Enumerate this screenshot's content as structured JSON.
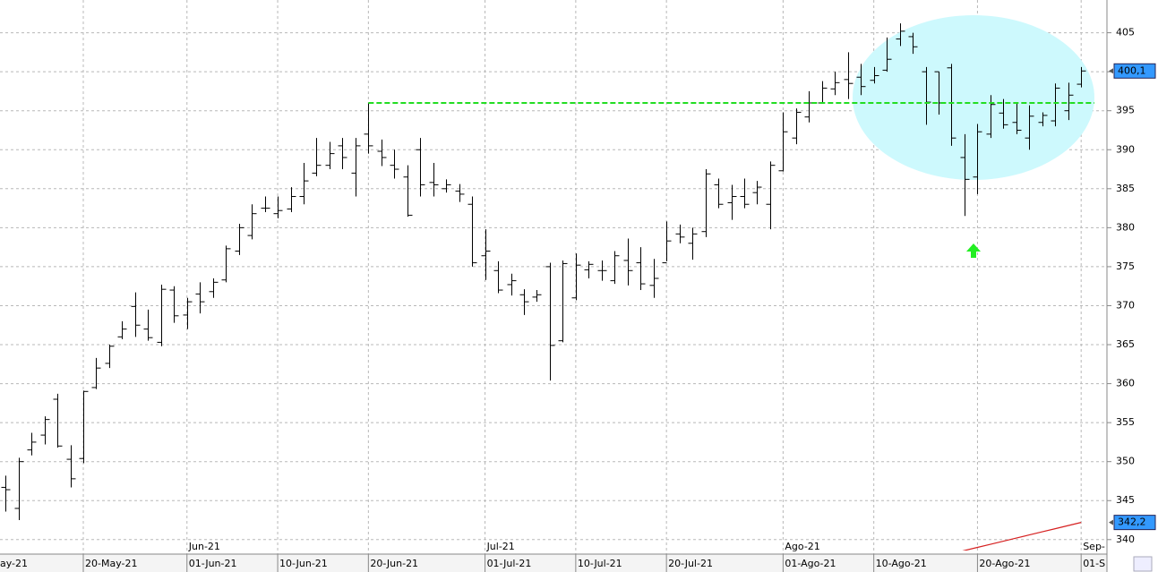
{
  "chart_data": {
    "type": "ohlc",
    "categories": [
      "ay-21",
      null,
      null,
      null,
      null,
      null,
      null,
      "20-May-21",
      null,
      null,
      null,
      null,
      null,
      null,
      null,
      "01-Jun-21",
      null,
      null,
      null,
      null,
      null,
      null,
      "10-Jun-21",
      null,
      null,
      null,
      null,
      null,
      null,
      "20-Jun-21",
      null,
      null,
      null,
      null,
      null,
      null,
      null,
      null,
      "01-Jul-21",
      null,
      null,
      null,
      null,
      null,
      null,
      "10-Jul-21",
      null,
      null,
      null,
      null,
      null,
      null,
      "20-Jul-21",
      null,
      null,
      null,
      null,
      null,
      null,
      null,
      null,
      "01-Ago-21",
      null,
      null,
      null,
      null,
      null,
      null,
      "10-Ago-21",
      null,
      null,
      null,
      null,
      null,
      null,
      null,
      "20-Ago-21",
      null,
      null,
      null,
      null,
      null,
      null,
      null,
      "01-S"
    ],
    "month_labels": [
      null,
      null,
      null,
      null,
      null,
      null,
      null,
      null,
      null,
      null,
      null,
      null,
      null,
      null,
      null,
      "Jun-21",
      null,
      null,
      null,
      null,
      null,
      null,
      null,
      null,
      null,
      null,
      null,
      null,
      null,
      null,
      null,
      null,
      null,
      null,
      null,
      null,
      null,
      null,
      "Jul-21",
      null,
      null,
      null,
      null,
      null,
      null,
      null,
      null,
      null,
      null,
      null,
      null,
      null,
      null,
      null,
      null,
      null,
      null,
      null,
      null,
      null,
      null,
      "Ago-21",
      null,
      null,
      null,
      null,
      null,
      null,
      null,
      null,
      null,
      null,
      null,
      null,
      null,
      null,
      null,
      null,
      null,
      null,
      null,
      null,
      null,
      null,
      "Sep-"
    ],
    "open": [
      null,
      346.7,
      344,
      351.5,
      353.4,
      358,
      350.3,
      350.4,
      359.5,
      362.6,
      366,
      369.9,
      367,
      365.3,
      372,
      368.8,
      371.5,
      371.8,
      373.3,
      377,
      379,
      382.5,
      381.8,
      382.4,
      384,
      387,
      388,
      390.5,
      387,
      392,
      389.8,
      388,
      386.5,
      390,
      385.8,
      385,
      384.7,
      383,
      376.4,
      374.5,
      372.7,
      371.4,
      371.1,
      375,
      365.5,
      371,
      374.6,
      374.5,
      373.2,
      375.8,
      375.5,
      372.6,
      375.5,
      379.2,
      378,
      379.5,
      385.5,
      383.2,
      384,
      384.5,
      383,
      387.3,
      391.5,
      394.2,
      396,
      397.8,
      399,
      399.3,
      398.9,
      400.2,
      404.2,
      404.5,
      400,
      400,
      400.5,
      389,
      386.5,
      392,
      394.7,
      393.5,
      391.5,
      393.5,
      393.7,
      395,
      398.4
    ],
    "high": [
      null,
      348.2,
      350.5,
      353.7,
      355.8,
      358.7,
      352.1,
      359.1,
      363.3,
      365,
      368,
      371.7,
      369.5,
      372.7,
      372.5,
      371,
      373,
      373.5,
      377.7,
      380.5,
      383,
      384,
      384,
      385.2,
      388.3,
      391.5,
      391,
      391.5,
      391.5,
      396,
      391.3,
      390,
      388,
      391.5,
      388.3,
      386.2,
      385.6,
      384,
      379.8,
      375.7,
      374.1,
      372.1,
      372,
      375.5,
      375.8,
      376.7,
      375.7,
      375.8,
      377,
      378.6,
      377.5,
      376,
      380.8,
      380.4,
      380,
      387.5,
      386.3,
      385.5,
      386.3,
      386,
      388.5,
      394.8,
      395.3,
      397.5,
      398.8,
      400,
      402.5,
      401,
      400.6,
      404.4,
      406.2,
      405,
      400.6,
      400,
      401,
      392,
      393.3,
      397,
      396.5,
      396,
      395.7,
      394.8,
      398.5,
      398.6,
      400.6
    ],
    "low": [
      null,
      343.6,
      342.5,
      350.8,
      352.2,
      351.8,
      346.7,
      349.8,
      359.3,
      362,
      365.7,
      366,
      365.5,
      364.8,
      367.8,
      367,
      369,
      371,
      373,
      376.5,
      378.5,
      382,
      381.2,
      382,
      383,
      386.6,
      387.5,
      387.5,
      384,
      389.5,
      387.9,
      386.3,
      381.4,
      384,
      384,
      384.5,
      383.3,
      375,
      373.3,
      371.6,
      371.3,
      368.8,
      370.5,
      360.4,
      365.3,
      370.7,
      373.5,
      373.2,
      372.8,
      372.6,
      372,
      371,
      375.7,
      378,
      375.9,
      378.8,
      382.5,
      381,
      382.5,
      383,
      379.8,
      387.2,
      390.7,
      393.5,
      395.9,
      397,
      396.5,
      397,
      398.5,
      400,
      403.3,
      402.3,
      393.2,
      394.5,
      390.5,
      381.5,
      384.3,
      391.5,
      392.7,
      392,
      390,
      393,
      393,
      393.8,
      398
    ],
    "close": [
      null,
      346.4,
      350,
      352.5,
      355.4,
      352,
      347.8,
      359,
      362,
      364.8,
      367,
      367.5,
      365.9,
      372.1,
      368.7,
      370.5,
      370.5,
      373,
      377.3,
      380,
      381.8,
      382.5,
      382.2,
      384,
      386,
      388,
      389.5,
      389,
      390.5,
      390.5,
      389,
      387.5,
      381.6,
      385.5,
      385.5,
      385.5,
      384.3,
      375.5,
      377,
      372,
      373.2,
      370.5,
      371.4,
      364.9,
      375.4,
      375.2,
      375.3,
      374.5,
      376.4,
      374.5,
      372.8,
      373.5,
      378.3,
      378.8,
      379.2,
      386.9,
      383,
      384,
      383,
      385.2,
      388,
      392.3,
      394.8,
      396,
      397.9,
      398.6,
      398.5,
      398.1,
      399.5,
      401.6,
      405.2,
      403.2,
      396.1,
      396,
      391.5,
      386.2,
      392.3,
      395.8,
      393.2,
      392.5,
      394.3,
      394.4,
      397.9,
      397,
      400.1
    ],
    "bar_color": "#000000",
    "series": [
      {
        "color": "#d62020",
        "values": [
          null,
          null,
          null,
          null,
          null,
          null,
          null,
          null,
          null,
          null,
          null,
          null,
          null,
          null,
          null,
          null,
          null,
          null,
          null,
          null,
          null,
          null,
          null,
          null,
          null,
          null,
          null,
          null,
          null,
          null,
          null,
          null,
          null,
          null,
          null,
          null,
          null,
          null,
          null,
          null,
          null,
          null,
          null,
          null,
          null,
          null,
          null,
          null,
          null,
          null,
          null,
          null,
          null,
          null,
          null,
          null,
          null,
          null,
          null,
          null,
          null,
          null,
          null,
          null,
          null,
          null,
          null,
          null,
          null,
          null,
          null,
          null,
          null,
          null,
          338.2,
          338.6,
          339,
          339.4,
          339.8,
          340.2,
          340.6,
          341,
          341.4,
          341.8,
          342.2
        ]
      }
    ],
    "hline": {
      "value": 396,
      "start": 29,
      "color": "#22dd22"
    },
    "last_value_labels": [
      {
        "value": 400.1,
        "label": "400,1",
        "color": "#3399ff"
      },
      {
        "value": 342.2,
        "label": "342,2",
        "color": "#3399ff"
      }
    ],
    "ylim": [
      338.6,
      409.2
    ],
    "yticks": [
      340,
      345,
      350,
      355,
      360,
      365,
      370,
      375,
      380,
      385,
      390,
      395,
      400,
      405
    ],
    "grid": true
  }
}
